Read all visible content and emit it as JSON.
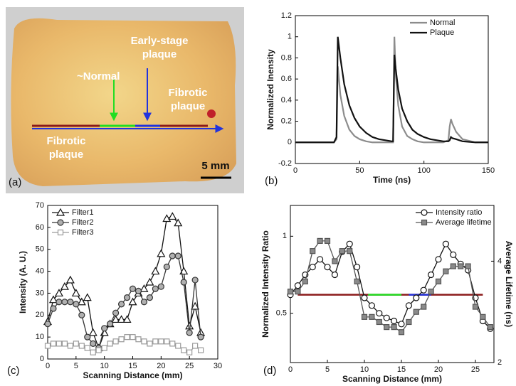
{
  "photo": {
    "panel_label": "(a)",
    "scale_bar": "5 mm",
    "labels": {
      "normal": "~Normal",
      "early": [
        "Early-stage",
        "plaque"
      ],
      "fibrotic_right": [
        "Fibrotic",
        "plaque"
      ],
      "fibrotic_left": [
        "Fibrotic",
        "plaque"
      ]
    }
  },
  "chart_data": [
    {
      "type": "line",
      "panel_label": "(b)",
      "xlabel": "Time (ns)",
      "ylabel": "Normalized Inensity",
      "legend": "upper right",
      "x": [
        0,
        10,
        20,
        30,
        32,
        33,
        35,
        38,
        42,
        46,
        50,
        55,
        60,
        65,
        70,
        75,
        76,
        77,
        78,
        80,
        83,
        87,
        91,
        95,
        100,
        105,
        110,
        115,
        119,
        120,
        121,
        122,
        125,
        130,
        140,
        150
      ],
      "xlim": [
        0,
        150
      ],
      "xticks": [
        0,
        50,
        100,
        150
      ],
      "ylim": [
        -0.2,
        1.2
      ],
      "yticks": [
        -0.2,
        0,
        0.2,
        0.4,
        0.6,
        0.8,
        1,
        1.2
      ],
      "series": [
        {
          "name": "Normal",
          "color": "#8c8c8c",
          "values": [
            0,
            0,
            0,
            0,
            0.03,
            0.72,
            0.45,
            0.25,
            0.12,
            0.06,
            0.03,
            0.01,
            0,
            0,
            0,
            0,
            0,
            1.0,
            0.65,
            0.35,
            0.15,
            0.06,
            0.03,
            0.01,
            0,
            0,
            0,
            0,
            0.02,
            0.15,
            0.22,
            0.18,
            0.1,
            0.03,
            0,
            0
          ]
        },
        {
          "name": "Plaque",
          "color": "#111111",
          "values": [
            0,
            0,
            0,
            0,
            0.05,
            1.0,
            0.8,
            0.55,
            0.35,
            0.23,
            0.15,
            0.09,
            0.05,
            0.03,
            0.02,
            0.01,
            0.01,
            0.83,
            0.7,
            0.5,
            0.32,
            0.2,
            0.12,
            0.08,
            0.05,
            0.03,
            0.02,
            0.01,
            0.01,
            0.02,
            0.05,
            0.04,
            0.03,
            0.01,
            0,
            0
          ]
        }
      ]
    },
    {
      "type": "line",
      "panel_label": "(c)",
      "xlabel": "Scanning Distance (mm)",
      "ylabel": "Intensity (A. U.)",
      "legend": "upper left",
      "x": [
        0,
        1,
        2,
        3,
        4,
        5,
        6,
        7,
        8,
        9,
        10,
        11,
        12,
        13,
        14,
        15,
        16,
        17,
        18,
        19,
        20,
        21,
        22,
        23,
        24,
        25,
        26,
        27
      ],
      "xlim": [
        0,
        30
      ],
      "xticks": [
        0,
        5,
        10,
        15,
        20,
        25,
        30
      ],
      "ylim": [
        0,
        70
      ],
      "yticks": [
        0,
        10,
        20,
        30,
        40,
        50,
        60,
        70
      ],
      "series": [
        {
          "name": "Filter1",
          "color": "#111111",
          "marker": "triangle",
          "marker_fill": "#ffffff",
          "values": [
            17,
            27,
            30,
            33,
            36,
            30,
            26,
            28,
            12,
            5,
            12,
            16,
            18,
            18,
            18,
            26,
            30,
            32,
            35,
            40,
            48,
            64,
            65,
            62,
            40,
            15,
            24,
            12
          ]
        },
        {
          "name": "Filter2",
          "color": "#333333",
          "marker": "circle",
          "marker_fill": "#b0b0b0",
          "values": [
            16,
            23,
            26,
            26,
            26,
            25,
            20,
            10,
            7,
            5,
            14,
            16,
            21,
            25,
            28,
            32,
            31,
            26,
            28,
            32,
            33,
            42,
            47,
            47,
            35,
            12,
            36,
            10
          ]
        },
        {
          "name": "Filter3",
          "color": "#9a9a9a",
          "marker": "square",
          "marker_fill": "#ffffff",
          "values": [
            6,
            7,
            7,
            7,
            6,
            7,
            6,
            5,
            3,
            4,
            5,
            7,
            8,
            9,
            10,
            10,
            9,
            8,
            7,
            8,
            8,
            8,
            7,
            6,
            4,
            3,
            6,
            4
          ]
        }
      ]
    },
    {
      "type": "line",
      "panel_label": "(d)",
      "xlabel": "Scanning Distance (mm)",
      "ylabel": "Normalized Intensity Ratio",
      "y2label": "Average Lifetime (ns)",
      "legend": "upper right",
      "x": [
        0,
        1,
        2,
        3,
        4,
        5,
        6,
        7,
        8,
        9,
        10,
        11,
        12,
        13,
        14,
        15,
        16,
        17,
        18,
        19,
        20,
        21,
        22,
        23,
        24,
        25,
        26,
        27
      ],
      "xlim": [
        0,
        27.5
      ],
      "xticks": [
        0,
        5,
        10,
        15,
        20,
        25
      ],
      "ylim": [
        0.18,
        1.2
      ],
      "yticks": [
        0.5,
        1
      ],
      "y2lim": [
        2,
        5.1
      ],
      "y2ticks": [
        2,
        4
      ],
      "segments": [
        {
          "color": "#8b1a1a",
          "x": [
            1,
            26
          ],
          "y": 0.62
        },
        {
          "color": "#22dd22",
          "x": [
            10.5,
            15
          ],
          "y": 0.62
        },
        {
          "color": "#2233dd",
          "x": [
            16,
            19
          ],
          "y": 0.62
        }
      ],
      "series": [
        {
          "name": "Intensity ratio",
          "color": "#111111",
          "marker": "circle",
          "marker_fill": "#ffffff",
          "values": [
            0.62,
            0.68,
            0.75,
            0.8,
            0.85,
            0.8,
            0.75,
            0.9,
            0.95,
            0.8,
            0.6,
            0.55,
            0.5,
            0.47,
            0.45,
            0.43,
            0.55,
            0.6,
            0.65,
            0.75,
            0.85,
            0.95,
            0.88,
            0.82,
            0.78,
            0.6,
            0.45,
            0.4
          ]
        },
        {
          "name": "Average lifetime",
          "color": "#555555",
          "marker": "square",
          "marker_fill": "#8a8a8a",
          "axis": "y2",
          "values": [
            3.4,
            3.4,
            3.6,
            4.2,
            4.4,
            4.4,
            4.0,
            4.2,
            4.2,
            3.6,
            2.9,
            2.9,
            2.8,
            2.7,
            2.7,
            2.6,
            2.8,
            3.0,
            3.1,
            3.4,
            3.6,
            3.8,
            3.9,
            3.9,
            3.9,
            3.1,
            2.9,
            2.7
          ]
        }
      ]
    }
  ]
}
